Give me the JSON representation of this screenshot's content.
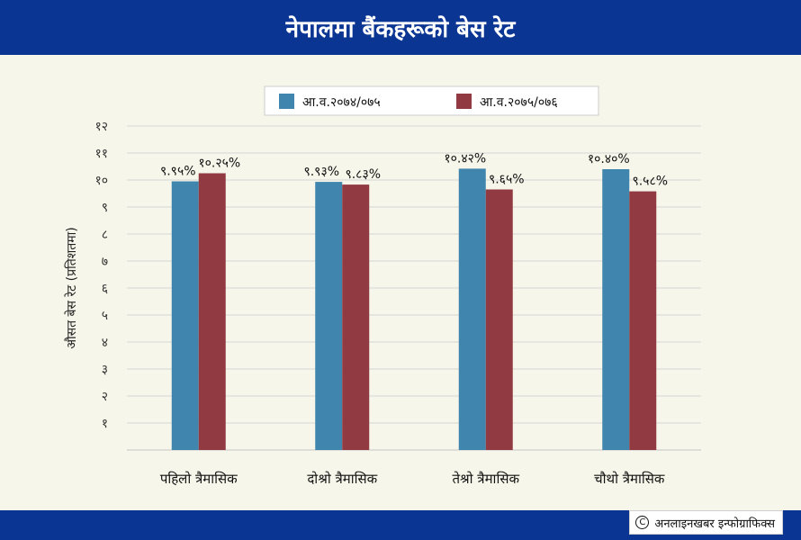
{
  "header": {
    "title": "नेपालमा बैंकहरूको बेस रेट"
  },
  "footer": {
    "credit": "अनलाइनखबर इन्फोग्राफिक्स"
  },
  "chart_data": {
    "type": "bar",
    "title": "नेपालमा बैंकहरूको बेस रेट",
    "ylabel": "औसत बेस रेट (प्रतिशतमा)",
    "xlabel": "",
    "ylim": [
      0,
      12
    ],
    "yticks": [
      1,
      2,
      3,
      4,
      5,
      6,
      7,
      8,
      9,
      10,
      11,
      12
    ],
    "ytick_labels": [
      "१",
      "२",
      "३",
      "४",
      "५",
      "६",
      "७",
      "८",
      "९",
      "१०",
      "११",
      "१२"
    ],
    "categories": [
      "पहिलो त्रैमासिक",
      "दोश्रो त्रैमासिक",
      "तेश्रो त्रैमासिक",
      "चौथो त्रैमासिक"
    ],
    "series": [
      {
        "name": "आ.व.२०७४/०७५",
        "color": "#3f85ad",
        "values": [
          9.95,
          9.93,
          10.42,
          10.4
        ],
        "labels": [
          "९.९५%",
          "९.९३%",
          "१०.४२%",
          "१०.४०%"
        ]
      },
      {
        "name": "आ.व.२०७५/०७६",
        "color": "#923a41",
        "values": [
          10.25,
          9.83,
          9.65,
          9.58
        ],
        "labels": [
          "१०.२५%",
          "९.८३%",
          "९.६५%",
          "९.५८%"
        ]
      }
    ],
    "legend": "top-center",
    "grid": true
  }
}
